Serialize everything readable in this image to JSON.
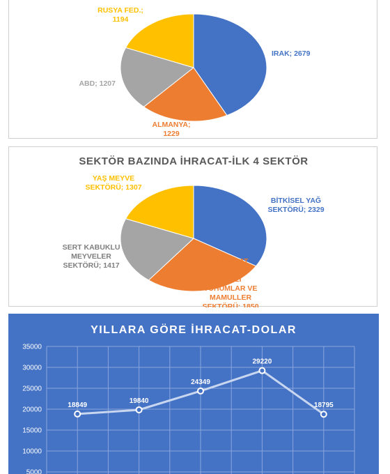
{
  "chart_data": [
    {
      "type": "pie",
      "title": "",
      "colors": [
        "#4472c4",
        "#ed7d31",
        "#a5a5a5",
        "#ffc000"
      ],
      "label_colors": [
        "#4472c4",
        "#ed7d31",
        "#a5a5a5",
        "#ffc000"
      ],
      "slices": [
        {
          "label": "IRAK",
          "value": 2679,
          "text_lines": [
            "IRAK; 2679"
          ]
        },
        {
          "label": "ALMANYA",
          "value": 1229,
          "text_lines": [
            "ALMANYA;",
            "1229"
          ]
        },
        {
          "label": "ABD",
          "value": 1207,
          "text_lines": [
            "ABD; 1207"
          ]
        },
        {
          "label": "RUSYA FED.",
          "value": 1194,
          "text_lines": [
            "RUSYA FED.;",
            "1194"
          ]
        }
      ]
    },
    {
      "type": "pie",
      "title": "SEKTÖR BAZINDA İHRACAT-İLK 4 SEKTÖR",
      "colors": [
        "#4472c4",
        "#ed7d31",
        "#a5a5a5",
        "#ffc000"
      ],
      "label_colors": [
        "#4472c4",
        "#ed7d31",
        "#7f7f7f",
        "#ffc000"
      ],
      "slices": [
        {
          "label": "BİTKİSEL YAĞ SEKTÖRÜ",
          "value": 2329,
          "text_lines": [
            "BİTKİSEL YAĞ",
            "SEKTÖRÜ; 2329"
          ]
        },
        {
          "label": "HUBUBAT BAKLİYAT YAĞLI TOHUMLAR VE MAMULLER SEKTÖRÜ",
          "value": 1850,
          "text_lines": [
            "HUBUBAT",
            "BAKLİYAT",
            "YAĞLI",
            "TOHUMLAR VE",
            "MAMULLER",
            "SEKTÖRÜ; 1850"
          ]
        },
        {
          "label": "SERT KABUKLU MEYVELER SEKTÖRÜ",
          "value": 1417,
          "text_lines": [
            "SERT KABUKLU",
            "MEYVELER",
            "SEKTÖRÜ; 1417"
          ]
        },
        {
          "label": "YAŞ MEYVE SEKTÖRÜ",
          "value": 1307,
          "text_lines": [
            "YAŞ MEYVE",
            "SEKTÖRÜ; 1307"
          ]
        }
      ]
    },
    {
      "type": "line",
      "title": "YILLARA GÖRE İHRACAT-DOLAR",
      "background": "#4472c4",
      "line_color": "#c9d6f0",
      "ylim": [
        0,
        35000
      ],
      "yticks": [
        "35000",
        "30000",
        "25000",
        "20000",
        "15000",
        "10000",
        "5000"
      ],
      "grid": true,
      "series": [
        {
          "values": [
            18849,
            19840,
            24349,
            29220,
            18795
          ]
        }
      ]
    }
  ]
}
